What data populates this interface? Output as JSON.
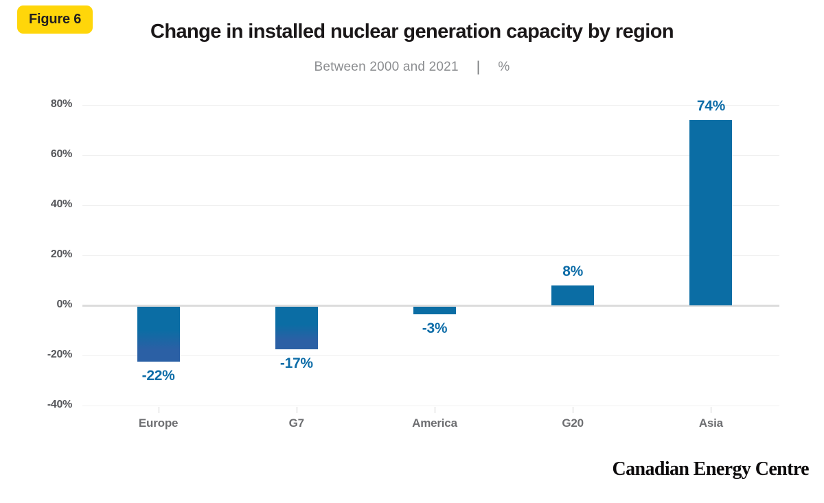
{
  "figure_badge": {
    "label": "Figure 6",
    "bg": "#ffd60a",
    "text_color": "#231f20"
  },
  "header": {
    "title": "Change in installed nuclear generation capacity by region",
    "subtitle": "Between 2000 and 2021",
    "subtitle_separator": "|",
    "subtitle_unit": "%"
  },
  "footer": {
    "brand": "Canadian Energy Centre"
  },
  "chart_data": {
    "type": "bar",
    "title": "Change in installed nuclear generation capacity by region",
    "subtitle": "Between 2000 and 2021 | %",
    "categories": [
      "Europe",
      "G7",
      "America",
      "G20",
      "Asia"
    ],
    "values": [
      -22,
      -17,
      -3,
      8,
      74
    ],
    "value_labels": [
      "-22%",
      "-17%",
      "-3%",
      "8%",
      "74%"
    ],
    "ylim": [
      -40,
      80
    ],
    "yticks": [
      80,
      60,
      40,
      20,
      0,
      -20,
      -40
    ],
    "ytick_labels": [
      "80%",
      "60%",
      "40%",
      "20%",
      "0%",
      "-20%",
      "-40%"
    ],
    "grid": true,
    "legend": false,
    "colors": {
      "bar": "#0b6da4",
      "bar_negative_bottom": "#2b60a5",
      "value_label": "#0e6da8",
      "gridline": "#f0f0f0",
      "zero_line": "#dcdcdc",
      "axis_tick": "#cfcfcf",
      "ytick_text": "#55565a",
      "xtick_text": "#6d6e71"
    }
  }
}
